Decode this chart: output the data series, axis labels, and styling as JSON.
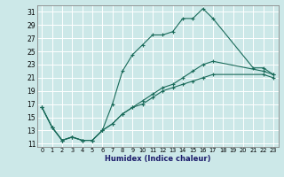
{
  "xlabel": "Humidex (Indice chaleur)",
  "bg_color": "#cce8e8",
  "grid_color": "#ffffff",
  "line_color": "#1a6b5a",
  "xlim": [
    -0.5,
    23.5
  ],
  "ylim": [
    10.5,
    32.0
  ],
  "xticks": [
    0,
    1,
    2,
    3,
    4,
    5,
    6,
    7,
    8,
    9,
    10,
    11,
    12,
    13,
    14,
    15,
    16,
    17,
    18,
    19,
    20,
    21,
    22,
    23
  ],
  "yticks": [
    11,
    13,
    15,
    17,
    19,
    21,
    23,
    25,
    27,
    29,
    31
  ],
  "curve1_x": [
    0,
    1,
    2,
    3,
    4,
    5,
    6,
    7,
    8,
    9,
    10,
    11,
    12,
    13,
    14,
    15,
    16,
    17,
    21,
    22,
    23
  ],
  "curve1_y": [
    16.5,
    13.5,
    11.5,
    12.0,
    11.5,
    11.5,
    13.0,
    17.0,
    22.0,
    24.5,
    26.0,
    27.5,
    27.5,
    28.0,
    30.0,
    30.0,
    31.5,
    30.0,
    22.5,
    22.5,
    21.5
  ],
  "curve2_x": [
    0,
    1,
    2,
    3,
    4,
    5,
    6,
    7,
    8,
    9,
    10,
    11,
    12,
    13,
    14,
    15,
    16,
    17,
    22,
    23
  ],
  "curve2_y": [
    16.5,
    13.5,
    11.5,
    12.0,
    11.5,
    11.5,
    13.0,
    14.0,
    15.5,
    16.5,
    17.5,
    18.5,
    19.5,
    20.0,
    21.0,
    22.0,
    23.0,
    23.5,
    22.0,
    21.5
  ],
  "curve3_x": [
    0,
    1,
    2,
    3,
    4,
    5,
    6,
    7,
    8,
    9,
    10,
    11,
    12,
    13,
    14,
    15,
    16,
    17,
    22,
    23
  ],
  "curve3_y": [
    16.5,
    13.5,
    11.5,
    12.0,
    11.5,
    11.5,
    13.0,
    14.0,
    15.5,
    16.5,
    17.0,
    18.0,
    19.0,
    19.5,
    20.0,
    20.5,
    21.0,
    21.5,
    21.5,
    21.0
  ]
}
